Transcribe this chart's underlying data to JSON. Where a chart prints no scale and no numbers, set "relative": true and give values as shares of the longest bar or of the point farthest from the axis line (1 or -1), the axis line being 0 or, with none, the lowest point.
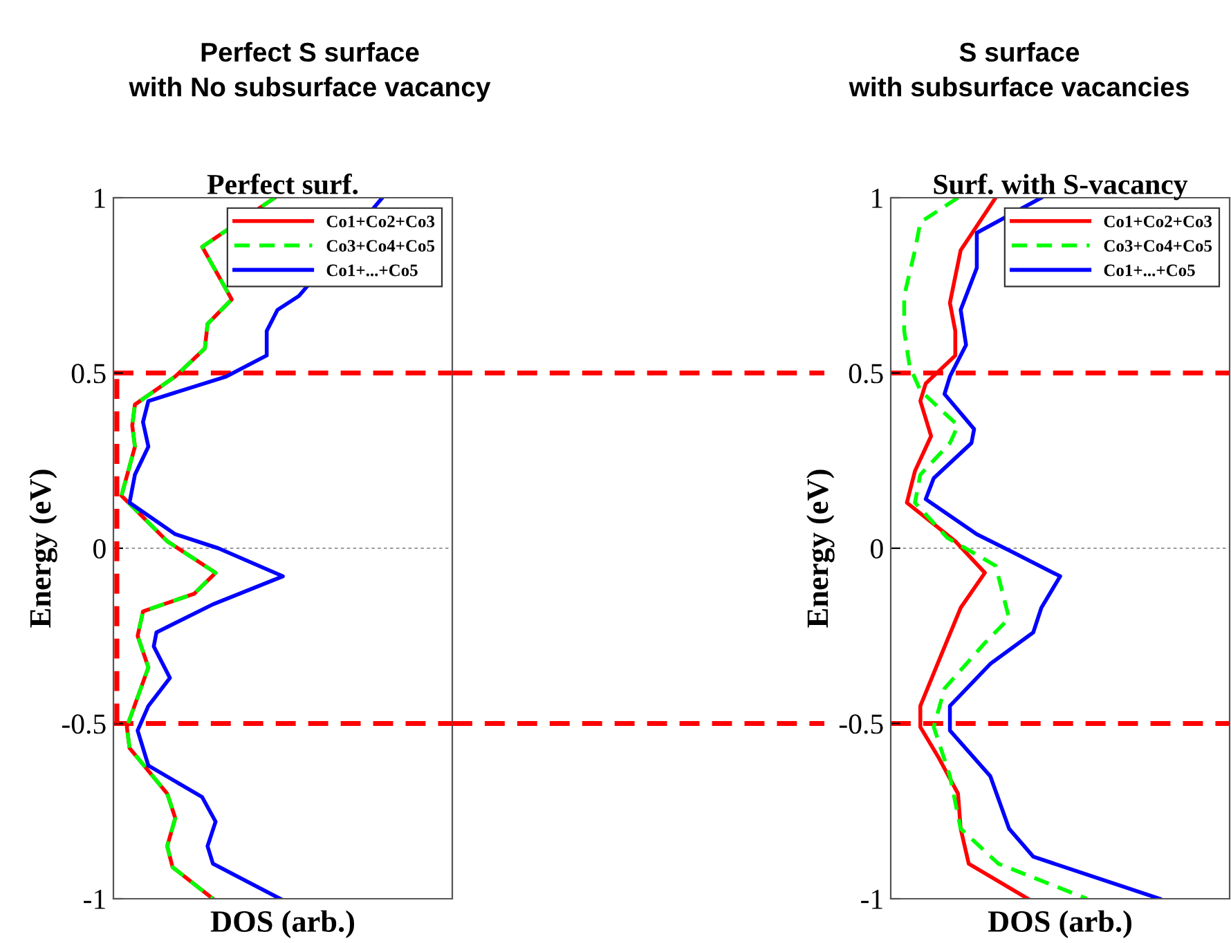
{
  "chart_data": [
    {
      "type": "line",
      "title": "Perfect S surface\nwith No subsurface vacancy",
      "subtitle": "Perfect surf.",
      "xlabel": "DOS (arb.)",
      "ylabel": "Energy (eV)",
      "orientation": "horizontal",
      "relative": true,
      "ylim": [
        -1,
        1
      ],
      "yticks": [
        -1,
        -0.5,
        0,
        0.5,
        1
      ],
      "tick_labels": "y",
      "grid": false,
      "legend": "top right",
      "marker": "none",
      "ref_lines": [
        {
          "axis": "y",
          "value": 0,
          "color": "#999999",
          "line_style": "dotted"
        },
        {
          "axis": "y",
          "value": 0.5,
          "color": "#ff0000",
          "line_style": "dashed"
        },
        {
          "axis": "y",
          "value": -0.5,
          "color": "#ff0000",
          "line_style": "dashed"
        }
      ],
      "series": [
        {
          "name": "Co1+Co2+Co3",
          "color": "#ff0000",
          "line_style": "solid",
          "x": [
            1.0,
            0.86,
            0.71,
            0.64,
            0.57,
            0.49,
            0.41,
            0.35,
            0.29,
            0.15,
            0.02,
            -0.07,
            -0.13,
            -0.18,
            -0.25,
            -0.34,
            -0.51,
            -0.57,
            -0.7,
            -0.77,
            -0.85,
            -0.91,
            -1.0
          ],
          "values": [
            0.6,
            0.33,
            0.44,
            0.35,
            0.34,
            0.23,
            0.08,
            0.07,
            0.08,
            0.03,
            0.2,
            0.38,
            0.3,
            0.11,
            0.09,
            0.13,
            0.05,
            0.06,
            0.2,
            0.23,
            0.2,
            0.22,
            0.37
          ]
        },
        {
          "name": "Co3+Co4+Co5",
          "color": "#00ff00",
          "line_style": "dashed",
          "x": [
            1.0,
            0.86,
            0.71,
            0.64,
            0.57,
            0.49,
            0.41,
            0.35,
            0.29,
            0.15,
            0.02,
            -0.07,
            -0.13,
            -0.18,
            -0.25,
            -0.34,
            -0.51,
            -0.57,
            -0.7,
            -0.77,
            -0.85,
            -0.91,
            -1.0
          ],
          "values": [
            0.6,
            0.33,
            0.44,
            0.35,
            0.34,
            0.23,
            0.08,
            0.07,
            0.08,
            0.03,
            0.2,
            0.38,
            0.3,
            0.11,
            0.09,
            0.13,
            0.05,
            0.06,
            0.2,
            0.23,
            0.2,
            0.22,
            0.37
          ]
        },
        {
          "name": "Co1+...+Co5",
          "color": "#0000ff",
          "line_style": "solid",
          "x": [
            1.0,
            0.72,
            0.68,
            0.62,
            0.55,
            0.49,
            0.42,
            0.36,
            0.29,
            0.21,
            0.13,
            0.04,
            0.0,
            -0.08,
            -0.16,
            -0.24,
            -0.28,
            -0.37,
            -0.45,
            -0.52,
            -0.62,
            -0.71,
            -0.78,
            -0.85,
            -0.9,
            -1.0
          ],
          "values": [
            1.0,
            0.69,
            0.61,
            0.57,
            0.57,
            0.42,
            0.13,
            0.11,
            0.13,
            0.08,
            0.06,
            0.23,
            0.39,
            0.63,
            0.37,
            0.16,
            0.15,
            0.21,
            0.13,
            0.09,
            0.13,
            0.33,
            0.38,
            0.35,
            0.37,
            0.62
          ]
        }
      ]
    },
    {
      "type": "line",
      "title": "S surface\nwith subsurface vacancies",
      "subtitle": "Surf. with S-vacancy",
      "xlabel": "DOS (arb.)",
      "ylabel": "Energy (eV)",
      "orientation": "horizontal",
      "relative": true,
      "ylim": [
        -1,
        1
      ],
      "yticks": [
        -1,
        -0.5,
        0,
        0.5,
        1
      ],
      "tick_labels": "y",
      "grid": false,
      "legend": "top right",
      "marker": "none",
      "ref_lines": [
        {
          "axis": "y",
          "value": 0,
          "color": "#999999",
          "line_style": "dotted"
        },
        {
          "axis": "y",
          "value": 0.5,
          "color": "#ff0000",
          "line_style": "dashed"
        },
        {
          "axis": "y",
          "value": -0.5,
          "color": "#ff0000",
          "line_style": "dashed"
        }
      ],
      "series": [
        {
          "name": "Co1+Co2+Co3",
          "color": "#ff0000",
          "line_style": "solid",
          "x": [
            1.0,
            0.85,
            0.7,
            0.62,
            0.55,
            0.47,
            0.42,
            0.32,
            0.22,
            0.13,
            0.02,
            -0.07,
            -0.17,
            -0.3,
            -0.45,
            -0.51,
            -0.6,
            -0.7,
            -0.8,
            -0.9,
            -1.0
          ],
          "values": [
            0.39,
            0.26,
            0.22,
            0.24,
            0.24,
            0.13,
            0.11,
            0.15,
            0.09,
            0.06,
            0.24,
            0.35,
            0.26,
            0.19,
            0.11,
            0.11,
            0.18,
            0.25,
            0.26,
            0.29,
            0.51
          ]
        },
        {
          "name": "Co3+Co4+Co5",
          "color": "#00ff00",
          "line_style": "dashed",
          "x": [
            1.0,
            0.93,
            0.85,
            0.72,
            0.62,
            0.52,
            0.45,
            0.35,
            0.3,
            0.21,
            0.13,
            0.03,
            -0.05,
            -0.2,
            -0.27,
            -0.4,
            -0.51,
            -0.65,
            -0.8,
            -0.9,
            -1.0
          ],
          "values": [
            0.25,
            0.11,
            0.09,
            0.05,
            0.05,
            0.07,
            0.11,
            0.25,
            0.22,
            0.11,
            0.09,
            0.21,
            0.39,
            0.44,
            0.35,
            0.2,
            0.16,
            0.22,
            0.26,
            0.4,
            0.73
          ]
        },
        {
          "name": "Co1+...+Co5",
          "color": "#0000ff",
          "line_style": "solid",
          "x": [
            1.0,
            0.9,
            0.8,
            0.68,
            0.58,
            0.49,
            0.44,
            0.34,
            0.3,
            0.2,
            0.14,
            0.04,
            -0.01,
            -0.08,
            -0.17,
            -0.24,
            -0.33,
            -0.45,
            -0.52,
            -0.65,
            -0.8,
            -0.88,
            -1.0
          ],
          "values": [
            0.56,
            0.32,
            0.32,
            0.26,
            0.28,
            0.22,
            0.2,
            0.31,
            0.3,
            0.16,
            0.13,
            0.32,
            0.45,
            0.63,
            0.56,
            0.53,
            0.37,
            0.22,
            0.22,
            0.37,
            0.44,
            0.53,
            1.0
          ]
        }
      ]
    }
  ]
}
